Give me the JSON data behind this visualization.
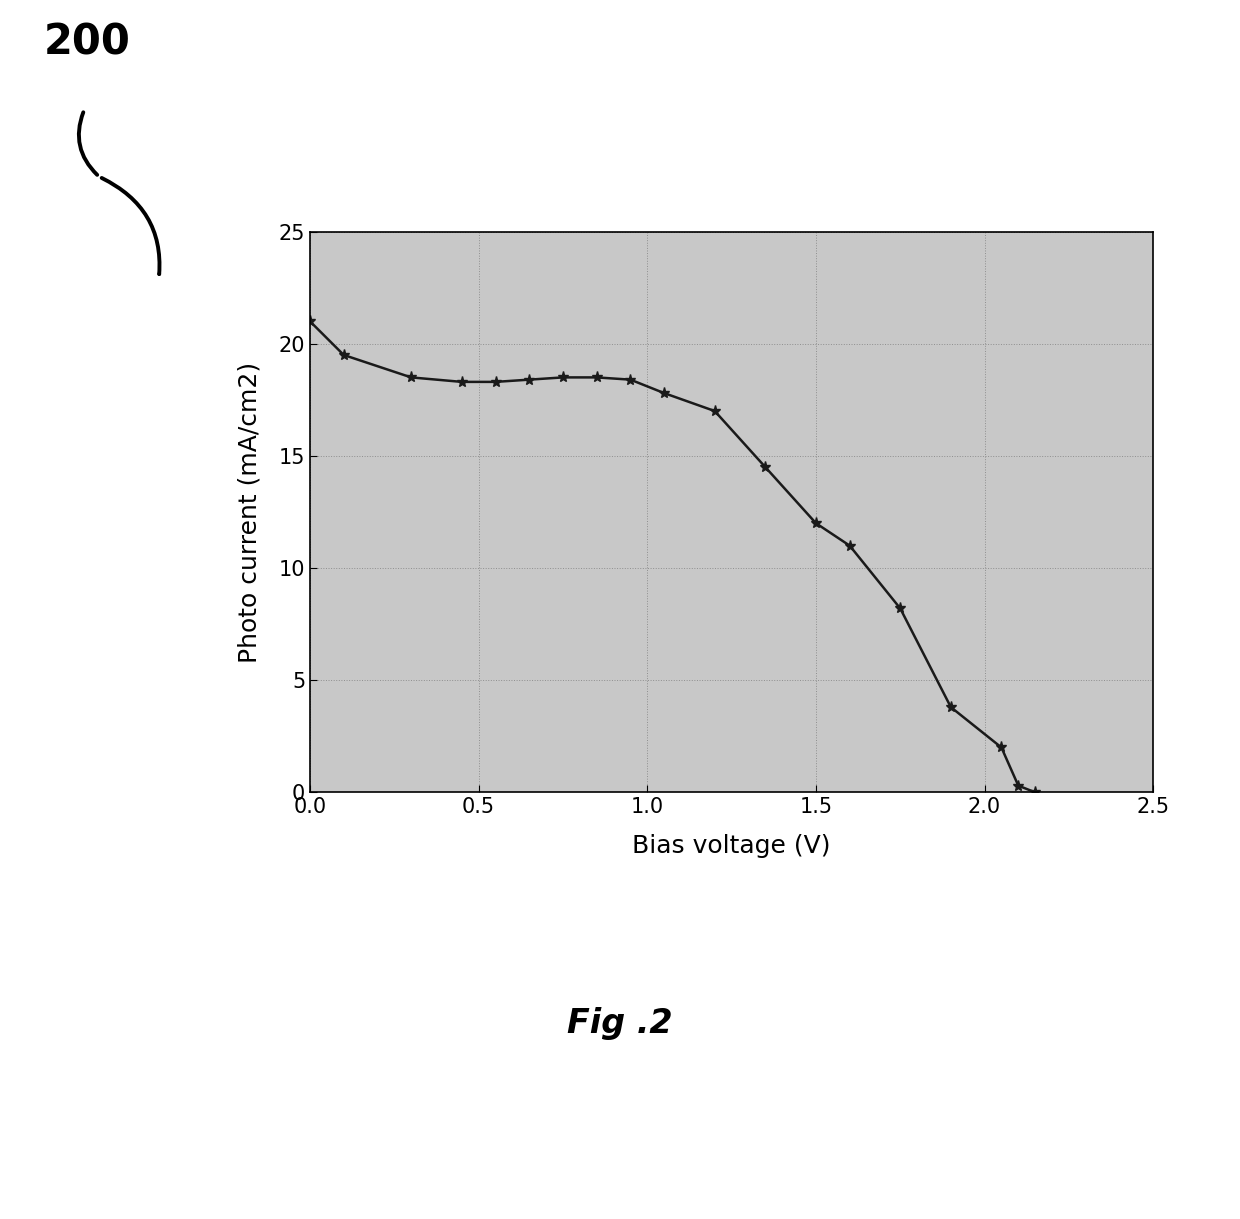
{
  "x": [
    0.0,
    0.1,
    0.3,
    0.45,
    0.55,
    0.65,
    0.75,
    0.85,
    0.95,
    1.05,
    1.2,
    1.35,
    1.5,
    1.6,
    1.75,
    1.9,
    2.05,
    2.1,
    2.15
  ],
  "y": [
    21.0,
    19.5,
    18.5,
    18.3,
    18.3,
    18.4,
    18.5,
    18.5,
    18.4,
    17.8,
    17.0,
    14.5,
    12.0,
    11.0,
    8.2,
    3.8,
    2.0,
    0.3,
    0.0
  ],
  "xlabel": "Bias voltage (V)",
  "ylabel": "Photo current (mA/cm2)",
  "xlim": [
    0.0,
    2.5
  ],
  "ylim": [
    0,
    25
  ],
  "xticks": [
    0.0,
    0.5,
    1.0,
    1.5,
    2.0,
    2.5
  ],
  "yticks": [
    0,
    5,
    10,
    15,
    20,
    25
  ],
  "line_color": "#1a1a1a",
  "marker": "*",
  "marker_size": 8,
  "bg_color": "#c8c8c8",
  "fig_bg": "#ffffff",
  "label_200": "200",
  "fig_label": "Fig .2",
  "axis_label_fontsize": 18,
  "tick_fontsize": 15
}
